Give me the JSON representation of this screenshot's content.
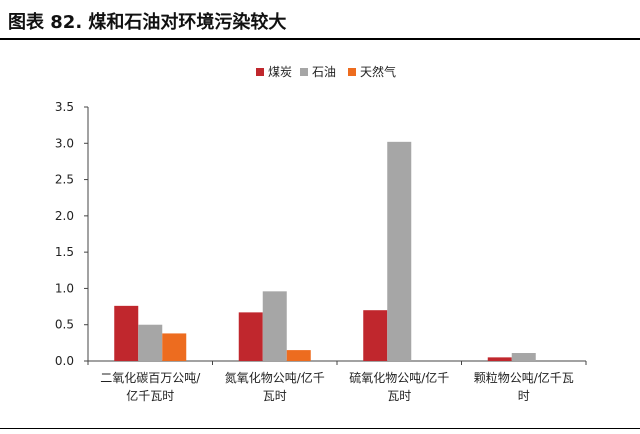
{
  "figure": {
    "title": "图表 82. 煤和石油对环境污染较大"
  },
  "chart_data": {
    "type": "bar",
    "categories": [
      [
        "二氧化碳百万公吨/",
        "亿千瓦时"
      ],
      [
        "氮氧化物公吨/亿千",
        "瓦时"
      ],
      [
        "硫氧化物公吨/亿千",
        "瓦时"
      ],
      [
        "颗粒物公吨/亿千瓦",
        "时"
      ]
    ],
    "series": [
      {
        "name": "煤炭",
        "color": "#C0272D",
        "values": [
          0.76,
          0.67,
          0.7,
          0.05
        ]
      },
      {
        "name": "石油",
        "color": "#A6A6A6",
        "values": [
          0.5,
          0.96,
          3.02,
          0.11
        ]
      },
      {
        "name": "天然气",
        "color": "#ED6C1F",
        "values": [
          0.38,
          0.15,
          0,
          0
        ]
      }
    ],
    "yticks": [
      "0.0",
      "0.5",
      "1.0",
      "1.5",
      "2.0",
      "2.5",
      "3.0",
      "3.5"
    ],
    "ylim": [
      0,
      3.5
    ],
    "legend_position": "top-center",
    "grid": false
  }
}
